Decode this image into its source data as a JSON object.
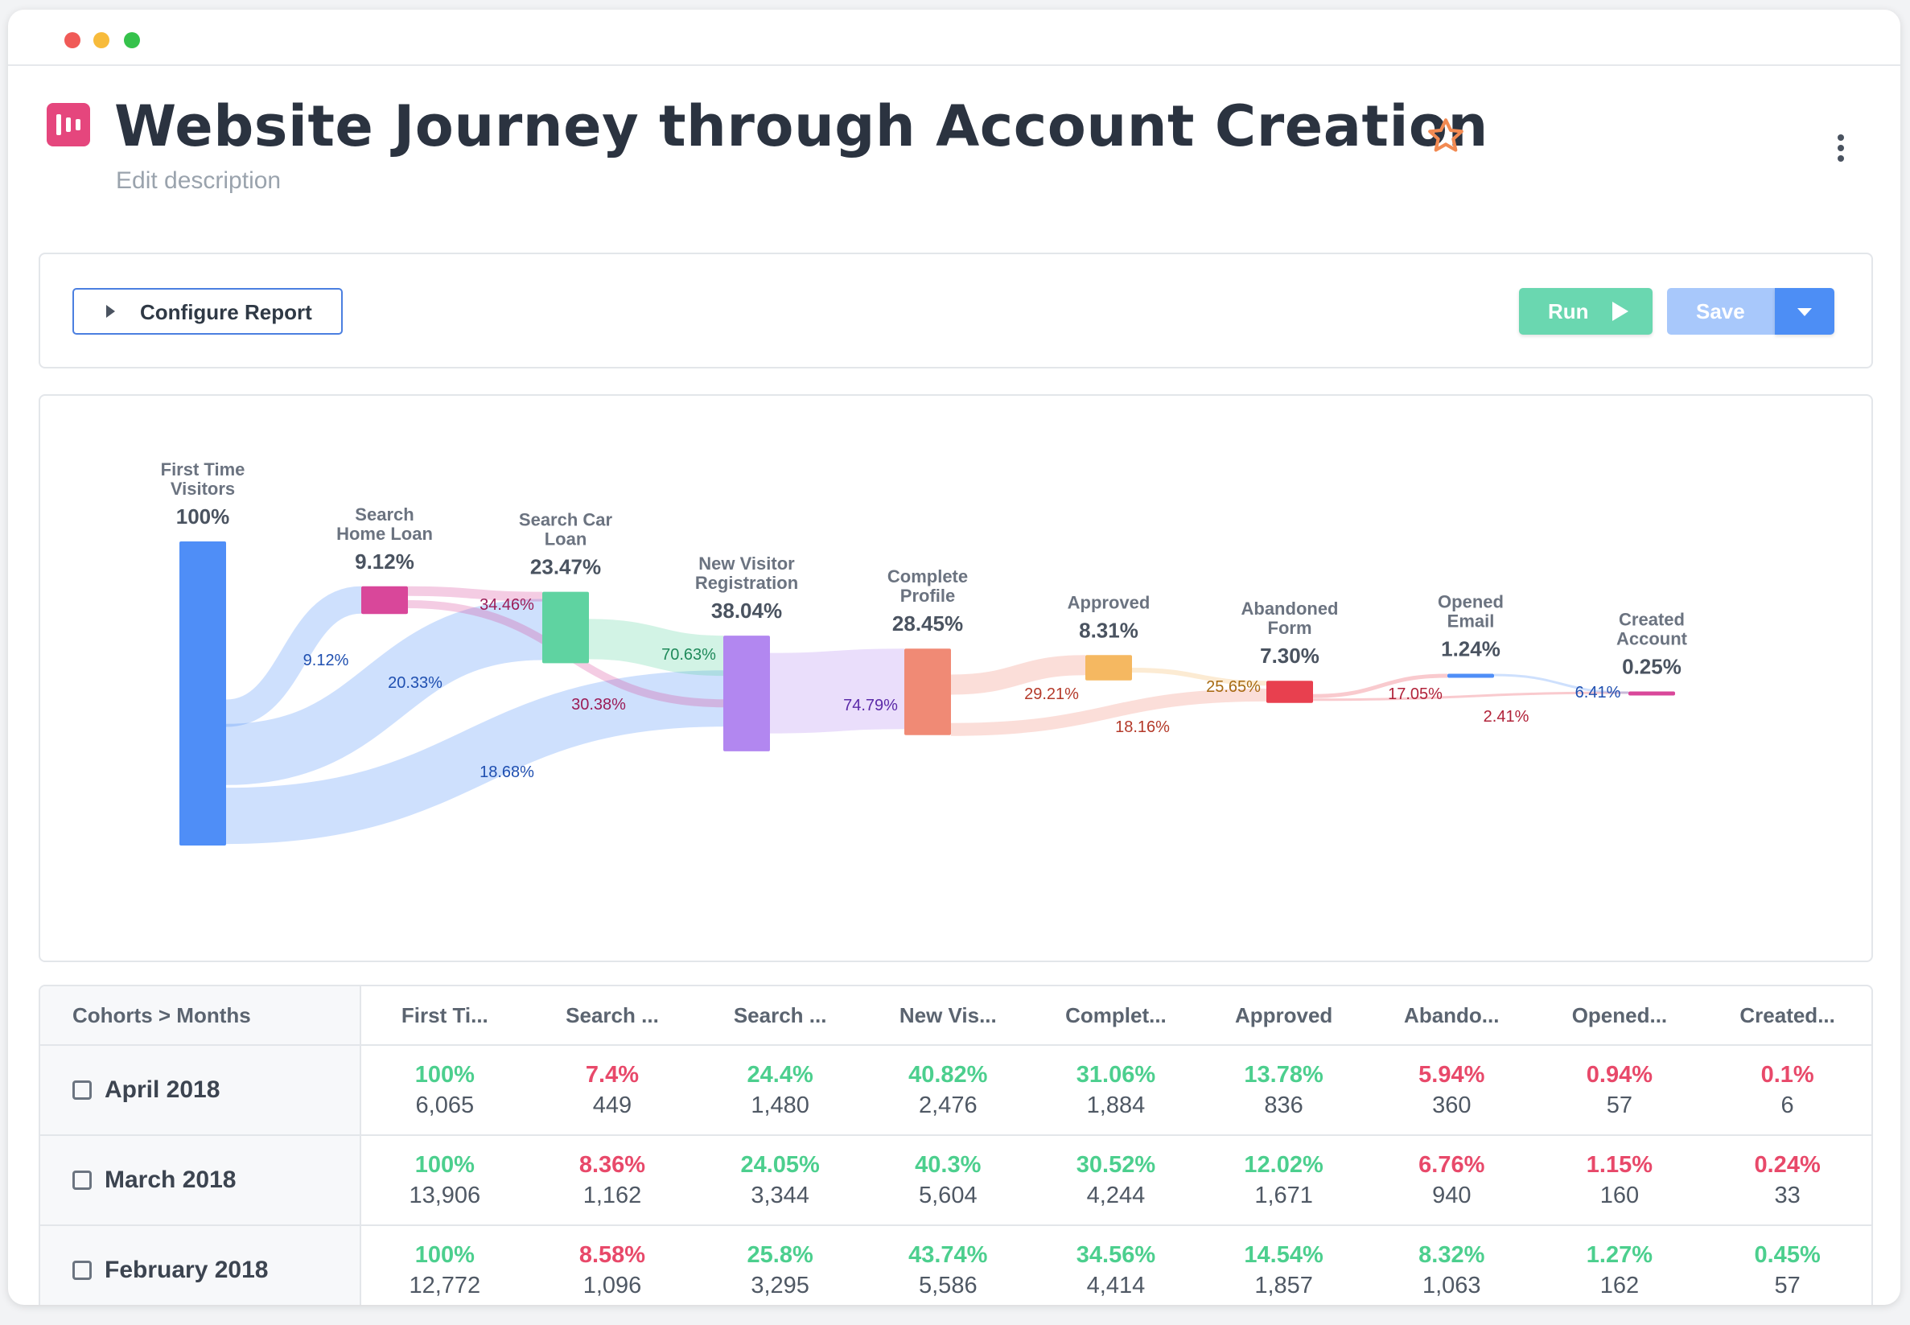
{
  "window": {
    "traffic_lights": [
      "close",
      "minimize",
      "maximize"
    ]
  },
  "header": {
    "title": "Website Journey through Account Creation",
    "description_placeholder": "Edit description",
    "icons": {
      "report": "report-icon",
      "favorite": "star-icon",
      "menu": "kebab-menu-icon"
    }
  },
  "toolbar": {
    "configure_label": "Configure Report",
    "run_label": "Run",
    "save_label": "Save"
  },
  "colors": {
    "blue": "#4f8ef7",
    "pink": "#d9479a",
    "green": "#5fd3a1",
    "purple": "#b287f0",
    "salmon": "#f08a75",
    "orange": "#f5b861",
    "red": "#e8404f",
    "accent_up": "#4ccf8e",
    "accent_down": "#e8496a"
  },
  "chart_data": {
    "type": "sankey",
    "nodes": [
      {
        "id": "ftv",
        "lines": [
          "First Time",
          "Visitors"
        ],
        "pct": "100%",
        "value": 100,
        "color": "#4f8ef7"
      },
      {
        "id": "shl",
        "lines": [
          "Search",
          "Home Loan"
        ],
        "pct": "9.12%",
        "value": 9.12,
        "color": "#d9479a"
      },
      {
        "id": "scl",
        "lines": [
          "Search Car",
          "Loan"
        ],
        "pct": "23.47%",
        "value": 23.47,
        "color": "#5fd3a1"
      },
      {
        "id": "nvr",
        "lines": [
          "New Visitor",
          "Registration"
        ],
        "pct": "38.04%",
        "value": 38.04,
        "color": "#b287f0"
      },
      {
        "id": "cp",
        "lines": [
          "Complete",
          "Profile"
        ],
        "pct": "28.45%",
        "value": 28.45,
        "color": "#f08a75"
      },
      {
        "id": "ap",
        "lines": [
          "Approved"
        ],
        "pct": "8.31%",
        "value": 8.31,
        "color": "#f5b861"
      },
      {
        "id": "af",
        "lines": [
          "Abandoned",
          "Form"
        ],
        "pct": "7.30%",
        "value": 7.3,
        "color": "#e8404f"
      },
      {
        "id": "oe",
        "lines": [
          "Opened",
          "Email"
        ],
        "pct": "1.24%",
        "value": 1.24,
        "color": "#4f8ef7"
      },
      {
        "id": "ca",
        "lines": [
          "Created",
          "Account"
        ],
        "pct": "0.25%",
        "value": 0.25,
        "color": "#d9479a"
      }
    ],
    "links": [
      {
        "from": "ftv",
        "to": "shl",
        "label": "9.12%",
        "value": 9.12
      },
      {
        "from": "ftv",
        "to": "scl",
        "label": "20.33%",
        "value": 20.33
      },
      {
        "from": "ftv",
        "to": "nvr",
        "label": "18.68%",
        "value": 18.68
      },
      {
        "from": "shl",
        "to": "scl",
        "label": "34.46%",
        "value": 34.46
      },
      {
        "from": "shl",
        "to": "nvr",
        "label": "30.38%",
        "value": 30.38
      },
      {
        "from": "scl",
        "to": "nvr",
        "label": "70.63%",
        "value": 70.63
      },
      {
        "from": "nvr",
        "to": "cp",
        "label": "74.79%",
        "value": 74.79
      },
      {
        "from": "cp",
        "to": "ap",
        "label": "29.21%",
        "value": 29.21
      },
      {
        "from": "cp",
        "to": "af",
        "label": "18.16%",
        "value": 18.16
      },
      {
        "from": "ap",
        "to": "af",
        "label": "25.65%",
        "value": 25.65
      },
      {
        "from": "af",
        "to": "oe",
        "label": "17.05%",
        "value": 17.05
      },
      {
        "from": "af",
        "to": "ca",
        "label": "2.41%",
        "value": 2.41
      },
      {
        "from": "oe",
        "to": "ca",
        "label": "6.41%",
        "value": 6.41
      }
    ]
  },
  "table": {
    "corner_header": "Cohorts > Months",
    "columns": [
      "First Ti...",
      "Search ...",
      "Search ...",
      "New Vis...",
      "Complet...",
      "Approved",
      "Abando...",
      "Opened...",
      "Created..."
    ],
    "rows": [
      {
        "label": "April 2018",
        "cells": [
          {
            "pct": "100%",
            "count": "6,065",
            "trend": "up"
          },
          {
            "pct": "7.4%",
            "count": "449",
            "trend": "down"
          },
          {
            "pct": "24.4%",
            "count": "1,480",
            "trend": "up"
          },
          {
            "pct": "40.82%",
            "count": "2,476",
            "trend": "up"
          },
          {
            "pct": "31.06%",
            "count": "1,884",
            "trend": "up"
          },
          {
            "pct": "13.78%",
            "count": "836",
            "trend": "up"
          },
          {
            "pct": "5.94%",
            "count": "360",
            "trend": "down"
          },
          {
            "pct": "0.94%",
            "count": "57",
            "trend": "down"
          },
          {
            "pct": "0.1%",
            "count": "6",
            "trend": "down"
          }
        ]
      },
      {
        "label": "March 2018",
        "cells": [
          {
            "pct": "100%",
            "count": "13,906",
            "trend": "up"
          },
          {
            "pct": "8.36%",
            "count": "1,162",
            "trend": "down"
          },
          {
            "pct": "24.05%",
            "count": "3,344",
            "trend": "up"
          },
          {
            "pct": "40.3%",
            "count": "5,604",
            "trend": "up"
          },
          {
            "pct": "30.52%",
            "count": "4,244",
            "trend": "up"
          },
          {
            "pct": "12.02%",
            "count": "1,671",
            "trend": "up"
          },
          {
            "pct": "6.76%",
            "count": "940",
            "trend": "down"
          },
          {
            "pct": "1.15%",
            "count": "160",
            "trend": "down"
          },
          {
            "pct": "0.24%",
            "count": "33",
            "trend": "down"
          }
        ]
      },
      {
        "label": "February 2018",
        "cells": [
          {
            "pct": "100%",
            "count": "12,772",
            "trend": "up"
          },
          {
            "pct": "8.58%",
            "count": "1,096",
            "trend": "down"
          },
          {
            "pct": "25.8%",
            "count": "3,295",
            "trend": "up"
          },
          {
            "pct": "43.74%",
            "count": "5,586",
            "trend": "up"
          },
          {
            "pct": "34.56%",
            "count": "4,414",
            "trend": "up"
          },
          {
            "pct": "14.54%",
            "count": "1,857",
            "trend": "up"
          },
          {
            "pct": "8.32%",
            "count": "1,063",
            "trend": "up"
          },
          {
            "pct": "1.27%",
            "count": "162",
            "trend": "up"
          },
          {
            "pct": "0.45%",
            "count": "57",
            "trend": "up"
          }
        ]
      }
    ]
  }
}
